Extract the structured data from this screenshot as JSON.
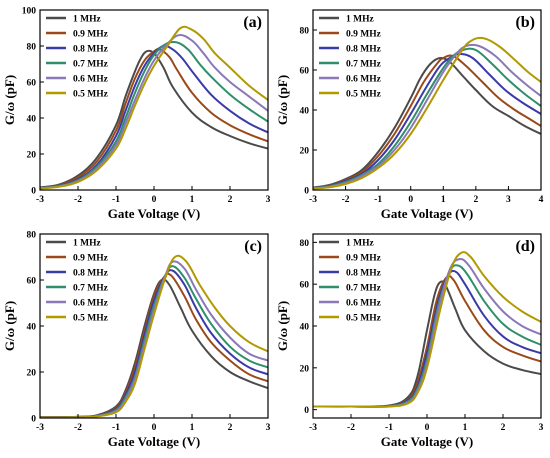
{
  "chart_data": [
    {
      "type": "line",
      "panel_label": "(a)",
      "xlabel": "Gate Voltage (V)",
      "ylabel": "G/ω (pF)",
      "xlim": [
        -3,
        3
      ],
      "ylim": [
        0,
        100
      ],
      "xticks": [
        -3,
        -2,
        -1,
        0,
        1,
        2,
        3
      ],
      "yticks": [
        0,
        20,
        40,
        60,
        80,
        100
      ],
      "legend_position": "top-left",
      "grid": false,
      "series": [
        {
          "name": "1 MHz",
          "color": "#4a4a4a",
          "x": [
            -3,
            -2.5,
            -2,
            -1.5,
            -1,
            -0.75,
            -0.5,
            -0.35,
            -0.2,
            0,
            0.25,
            0.5,
            1,
            1.5,
            2,
            2.5,
            3
          ],
          "y": [
            1.5,
            3,
            8,
            18,
            36,
            52,
            66,
            73,
            77,
            76,
            68,
            57,
            43,
            35,
            30,
            26,
            23
          ]
        },
        {
          "name": "0.9 MHz",
          "color": "#9a4a1a",
          "x": [
            -3,
            -2.5,
            -2,
            -1.5,
            -1,
            -0.75,
            -0.5,
            -0.25,
            0,
            0.15,
            0.4,
            0.6,
            1,
            1.5,
            2,
            2.5,
            3
          ],
          "y": [
            1.3,
            2.6,
            7,
            16,
            33,
            48,
            62,
            72,
            77,
            78,
            74,
            67,
            54,
            43,
            36,
            31,
            27
          ]
        },
        {
          "name": "0.8 MHz",
          "color": "#3a3aa8",
          "x": [
            -3,
            -2.5,
            -2,
            -1.5,
            -1,
            -0.75,
            -0.5,
            -0.25,
            0,
            0.25,
            0.5,
            0.75,
            1,
            1.5,
            2,
            2.5,
            3
          ],
          "y": [
            1.2,
            2.4,
            6,
            14,
            30,
            44,
            58,
            69,
            76,
            80,
            78,
            73,
            66,
            53,
            44,
            37,
            32
          ]
        },
        {
          "name": "0.7 MHz",
          "color": "#2e8f6a",
          "x": [
            -3,
            -2.5,
            -2,
            -1.5,
            -1,
            -0.75,
            -0.5,
            -0.25,
            0,
            0.3,
            0.6,
            0.9,
            1.2,
            1.5,
            2,
            2.5,
            3
          ],
          "y": [
            1.1,
            2.2,
            5.5,
            13,
            27,
            40,
            54,
            66,
            75,
            81,
            82,
            78,
            70,
            63,
            53,
            45,
            38
          ]
        },
        {
          "name": "0.6 MHz",
          "color": "#8a78b8",
          "x": [
            -3,
            -2.5,
            -2,
            -1.5,
            -1,
            -0.75,
            -0.5,
            -0.25,
            0,
            0.3,
            0.65,
            1,
            1.3,
            1.6,
            2,
            2.5,
            3
          ],
          "y": [
            1,
            2,
            5,
            12,
            25,
            37,
            50,
            62,
            72,
            80,
            86,
            83,
            76,
            68,
            60,
            52,
            44
          ]
        },
        {
          "name": "0.5 MHz",
          "color": "#b09a00",
          "x": [
            -3,
            -2.5,
            -2,
            -1.5,
            -1,
            -0.75,
            -0.5,
            -0.25,
            0,
            0.35,
            0.7,
            1,
            1.3,
            1.6,
            2,
            2.5,
            3
          ],
          "y": [
            0.9,
            1.8,
            4.5,
            11,
            23,
            34,
            47,
            59,
            69,
            80,
            90,
            89,
            84,
            76,
            68,
            58,
            50
          ]
        }
      ]
    },
    {
      "type": "line",
      "panel_label": "(b)",
      "xlabel": "Gate Voltage (V)",
      "ylabel": "G/ω (pF)",
      "xlim": [
        -3,
        4
      ],
      "ylim": [
        0,
        90
      ],
      "xticks": [
        -3,
        -2,
        -1,
        0,
        1,
        2,
        3,
        4
      ],
      "yticks": [
        0,
        20,
        40,
        60,
        80
      ],
      "legend_position": "top-left",
      "grid": false,
      "series": [
        {
          "name": "1 MHz",
          "color": "#4a4a4a",
          "x": [
            -3,
            -2.5,
            -2,
            -1.5,
            -1,
            -0.5,
            0,
            0.3,
            0.6,
            0.9,
            1.2,
            1.6,
            2,
            2.5,
            3,
            3.5,
            4
          ],
          "y": [
            1.2,
            2.5,
            5.5,
            10,
            19,
            31,
            46,
            56,
            63,
            66,
            64,
            57,
            50,
            42,
            37,
            32,
            28
          ]
        },
        {
          "name": "0.9 MHz",
          "color": "#9a4a1a",
          "x": [
            -3,
            -2.5,
            -2,
            -1.5,
            -1,
            -0.5,
            0,
            0.4,
            0.8,
            1,
            1.3,
            1.7,
            2.2,
            2.7,
            3.2,
            3.6,
            4
          ],
          "y": [
            1.1,
            2.2,
            5,
            9,
            17,
            28,
            42,
            54,
            63,
            66,
            67,
            62,
            54,
            46,
            40,
            36,
            32
          ]
        },
        {
          "name": "0.8 MHz",
          "color": "#3a3aa8",
          "x": [
            -3,
            -2.5,
            -2,
            -1.5,
            -1,
            -0.5,
            0,
            0.5,
            0.9,
            1.2,
            1.5,
            1.9,
            2.4,
            2.9,
            3.4,
            4
          ],
          "y": [
            1,
            2,
            4.5,
            8,
            15,
            25,
            38,
            52,
            62,
            66,
            68,
            66,
            58,
            50,
            44,
            38
          ]
        },
        {
          "name": "0.7 MHz",
          "color": "#2e8f6a",
          "x": [
            -3,
            -2.5,
            -2,
            -1.5,
            -1,
            -0.5,
            0,
            0.5,
            1,
            1.3,
            1.6,
            2,
            2.5,
            3,
            3.5,
            4
          ],
          "y": [
            0.9,
            1.8,
            4,
            7.5,
            13,
            22,
            34,
            48,
            61,
            67,
            70,
            70,
            63,
            55,
            48,
            42
          ]
        },
        {
          "name": "0.6 MHz",
          "color": "#8a78b8",
          "x": [
            -3,
            -2.5,
            -2,
            -1.5,
            -1,
            -0.5,
            0,
            0.5,
            1,
            1.4,
            1.7,
            2.1,
            2.6,
            3.1,
            3.6,
            4
          ],
          "y": [
            0.8,
            1.6,
            3.5,
            7,
            12,
            20,
            31,
            45,
            59,
            68,
            72,
            72,
            67,
            59,
            52,
            47
          ]
        },
        {
          "name": "0.5 MHz",
          "color": "#b09a00",
          "x": [
            -3,
            -2.5,
            -2,
            -1.5,
            -1,
            -0.5,
            0,
            0.5,
            1,
            1.5,
            1.8,
            2.2,
            2.7,
            3.2,
            3.6,
            4
          ],
          "y": [
            0.7,
            1.4,
            3,
            6,
            11,
            18,
            28,
            41,
            55,
            68,
            74,
            76,
            72,
            65,
            59,
            54
          ]
        }
      ]
    },
    {
      "type": "line",
      "panel_label": "(c)",
      "xlabel": "Gate Voltage (V)",
      "ylabel": "G/ω (pF)",
      "xlim": [
        -3,
        3
      ],
      "ylim": [
        0,
        80
      ],
      "xticks": [
        -3,
        -2,
        -1,
        0,
        1,
        2,
        3
      ],
      "yticks": [
        0,
        20,
        40,
        60,
        80
      ],
      "legend_position": "top-left",
      "grid": false,
      "series": [
        {
          "name": "1 MHz",
          "color": "#4a4a4a",
          "x": [
            -3,
            -2,
            -1.5,
            -1,
            -0.75,
            -0.5,
            -0.25,
            0,
            0.2,
            0.4,
            0.7,
            1,
            1.5,
            2,
            2.5,
            3
          ],
          "y": [
            0.3,
            0.5,
            1.2,
            5,
            12,
            24,
            40,
            54,
            60,
            58,
            48,
            38,
            27,
            20,
            16,
            13
          ]
        },
        {
          "name": "0.9 MHz",
          "color": "#9a4a1a",
          "x": [
            -3,
            -2,
            -1.5,
            -1,
            -0.75,
            -0.5,
            -0.25,
            0,
            0.25,
            0.45,
            0.8,
            1.1,
            1.5,
            2,
            2.5,
            3
          ],
          "y": [
            0.3,
            0.5,
            1.1,
            4.5,
            11,
            22,
            38,
            53,
            61,
            62,
            53,
            43,
            33,
            25,
            19,
            16
          ]
        },
        {
          "name": "0.8 MHz",
          "color": "#3a3aa8",
          "x": [
            -3,
            -2,
            -1.5,
            -1,
            -0.75,
            -0.5,
            -0.25,
            0,
            0.3,
            0.5,
            0.8,
            1.1,
            1.5,
            2,
            2.5,
            3
          ],
          "y": [
            0.3,
            0.5,
            1,
            4,
            10,
            20,
            36,
            51,
            62,
            64,
            58,
            48,
            37,
            28,
            22,
            19
          ]
        },
        {
          "name": "0.7 MHz",
          "color": "#2e8f6a",
          "x": [
            -3,
            -2,
            -1.5,
            -1,
            -0.75,
            -0.5,
            -0.25,
            0,
            0.3,
            0.5,
            0.8,
            1.1,
            1.5,
            2,
            2.5,
            3
          ],
          "y": [
            0.2,
            0.4,
            0.9,
            3.5,
            9,
            18,
            34,
            49,
            62,
            66,
            61,
            52,
            41,
            31,
            25,
            22
          ]
        },
        {
          "name": "0.6 MHz",
          "color": "#8a78b8",
          "x": [
            -3,
            -2,
            -1.5,
            -1,
            -0.75,
            -0.5,
            -0.25,
            0,
            0.3,
            0.5,
            0.8,
            1.1,
            1.5,
            2,
            2.5,
            3
          ],
          "y": [
            0.2,
            0.4,
            0.8,
            3,
            8,
            17,
            32,
            47,
            62,
            68,
            65,
            56,
            45,
            35,
            28,
            25
          ]
        },
        {
          "name": "0.5 MHz",
          "color": "#b09a00",
          "x": [
            -3,
            -2,
            -1.5,
            -1,
            -0.75,
            -0.5,
            -0.25,
            0,
            0.3,
            0.55,
            0.85,
            1.2,
            1.6,
            2,
            2.5,
            3
          ],
          "y": [
            0.2,
            0.3,
            0.7,
            2.5,
            7,
            15,
            30,
            45,
            61,
            70,
            68,
            58,
            48,
            40,
            33,
            29
          ]
        }
      ]
    },
    {
      "type": "line",
      "panel_label": "(d)",
      "xlabel": "Gate Voltage (V)",
      "ylabel": "G/ω (pF)",
      "xlim": [
        -3,
        3
      ],
      "ylim": [
        -4,
        84
      ],
      "xticks": [
        -3,
        -2,
        -1,
        0,
        1,
        2,
        3
      ],
      "yticks": [
        0,
        20,
        40,
        60,
        80
      ],
      "legend_position": "top-left",
      "grid": false,
      "series": [
        {
          "name": "1 MHz",
          "color": "#4a4a4a",
          "x": [
            -3,
            -2,
            -1,
            -0.5,
            -0.25,
            0,
            0.2,
            0.35,
            0.5,
            0.75,
            1,
            1.5,
            2,
            2.5,
            3
          ],
          "y": [
            1.5,
            1.5,
            2,
            6,
            16,
            38,
            55,
            61,
            59,
            48,
            38,
            28,
            22,
            19,
            17
          ]
        },
        {
          "name": "0.9 MHz",
          "color": "#9a4a1a",
          "x": [
            -3,
            -2,
            -1,
            -0.5,
            -0.25,
            0,
            0.25,
            0.5,
            0.7,
            1,
            1.5,
            2,
            2.5,
            3
          ],
          "y": [
            1.5,
            1.5,
            1.8,
            5,
            13,
            30,
            52,
            63,
            62,
            52,
            38,
            30,
            26,
            23
          ]
        },
        {
          "name": "0.8 MHz",
          "color": "#3a3aa8",
          "x": [
            -3,
            -2,
            -1,
            -0.5,
            -0.25,
            0,
            0.3,
            0.55,
            0.75,
            1,
            1.5,
            2,
            2.5,
            3
          ],
          "y": [
            1.5,
            1.5,
            1.7,
            4.5,
            11,
            27,
            52,
            64,
            66,
            60,
            45,
            35,
            30,
            27
          ]
        },
        {
          "name": "0.7 MHz",
          "color": "#2e8f6a",
          "x": [
            -3,
            -2,
            -1,
            -0.5,
            -0.25,
            0,
            0.3,
            0.6,
            0.8,
            1.05,
            1.5,
            2,
            2.5,
            3
          ],
          "y": [
            1.5,
            1.5,
            1.6,
            4,
            10,
            24,
            50,
            66,
            69,
            65,
            52,
            41,
            35,
            31
          ]
        },
        {
          "name": "0.6 MHz",
          "color": "#8a78b8",
          "x": [
            -3,
            -2,
            -1,
            -0.5,
            -0.25,
            0,
            0.3,
            0.6,
            0.85,
            1.1,
            1.5,
            2,
            2.5,
            3
          ],
          "y": [
            1.5,
            1.5,
            1.5,
            3.5,
            9,
            22,
            48,
            67,
            72,
            69,
            58,
            47,
            40,
            36
          ]
        },
        {
          "name": "0.5 MHz",
          "color": "#b09a00",
          "x": [
            -3,
            -2,
            -1,
            -0.5,
            -0.25,
            0,
            0.35,
            0.65,
            0.9,
            1.15,
            1.5,
            2,
            2.5,
            3
          ],
          "y": [
            1.5,
            1.5,
            1.5,
            3,
            8,
            20,
            48,
            68,
            75,
            73,
            64,
            54,
            47,
            42
          ]
        }
      ]
    }
  ]
}
